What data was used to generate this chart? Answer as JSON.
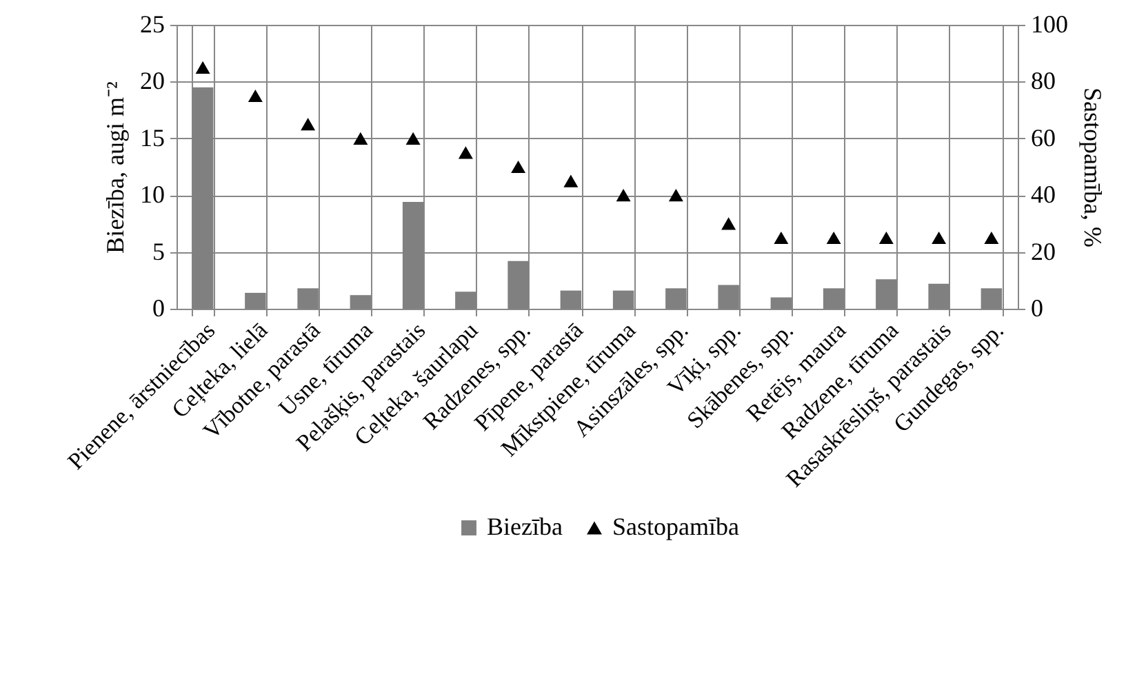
{
  "chart_data": {
    "type": "bar",
    "xlabel": null,
    "ylabel": "Biezība, augi m⁻²",
    "y2label": "Sastopamība, %",
    "categories": [
      "Pienene, ārstniecības",
      "Ceļteka, lielā",
      "Vībotne, parastā",
      "Usne, tīruma",
      "Pelašķis, parastais",
      "Ceļteka, šaurlapu",
      "Radzenes, spp.",
      "Pīpene, parastā",
      "Mīkstpiene, tīruma",
      "Asinszāles, spp.",
      "Vīķi, spp.",
      "Skābenes, spp.",
      "Retējs, maura",
      "Radzene, tīruma",
      "Rasaskrēsliņš, parastais",
      "Gundegas, spp."
    ],
    "series": [
      {
        "name": "Biezība",
        "color": "#808080",
        "values": [
          19.5,
          1.4,
          1.8,
          1.2,
          9.4,
          1.5,
          4.2,
          1.6,
          1.6,
          1.8,
          2.1,
          1.0,
          1.8,
          2.6,
          2.2,
          1.8
        ]
      },
      {
        "name": "Sastopamība",
        "type": "scatter",
        "axis": "y2",
        "color": "#000000",
        "marker": "triangle",
        "values": [
          85,
          75,
          65,
          60,
          60,
          55,
          50,
          45,
          40,
          40,
          30,
          25,
          25,
          25,
          25,
          25
        ]
      }
    ],
    "ylim": [
      0,
      25
    ],
    "yticks": [
      0,
      5,
      10,
      15,
      20,
      25
    ],
    "y2lim": [
      0,
      100
    ],
    "y2ticks": [
      0,
      20,
      40,
      60,
      80,
      100
    ],
    "grid": true,
    "legend": "bottom"
  }
}
